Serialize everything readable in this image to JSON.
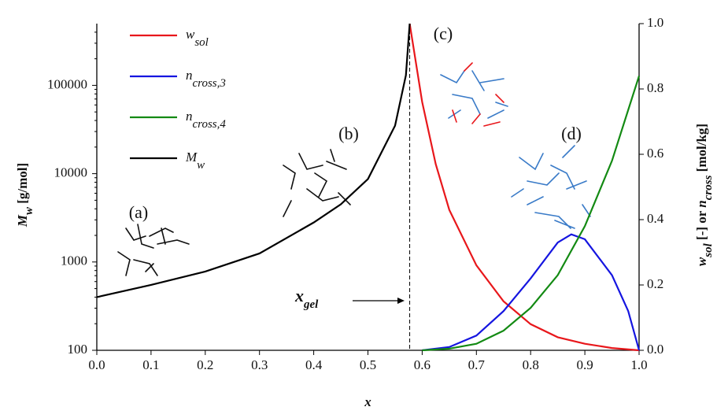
{
  "chart_data": {
    "type": "line",
    "xlabel": "x",
    "ylabel": {
      "main": "M",
      "sub": "w",
      "rest": " [g/mol]"
    },
    "y2label": {
      "a": "w",
      "a_sub": "sol",
      "b": " [-]  or  ",
      "c": "n",
      "c_sub": "cross",
      "d": " [mol/kg]"
    },
    "xlim": [
      0,
      1
    ],
    "xticks": [
      {
        "value": 0,
        "label": "0.0"
      },
      {
        "value": 0.1,
        "label": "0.1"
      },
      {
        "value": 0.2,
        "label": "0.2"
      },
      {
        "value": 0.3,
        "label": "0.3"
      },
      {
        "value": 0.4,
        "label": "0.4"
      },
      {
        "value": 0.5,
        "label": "0.5"
      },
      {
        "value": 0.6,
        "label": "0.6"
      },
      {
        "value": 0.7,
        "label": "0.7"
      },
      {
        "value": 0.8,
        "label": "0.8"
      },
      {
        "value": 0.9,
        "label": "0.9"
      },
      {
        "value": 1,
        "label": "1.0"
      }
    ],
    "ylim": [
      100,
      500000
    ],
    "ylog": true,
    "yticks": [
      100,
      1000,
      10000,
      100000
    ],
    "y2lim": [
      0,
      1
    ],
    "y2ticks": [
      {
        "value": 0,
        "label": "0.0"
      },
      {
        "value": 0.2,
        "label": "0.2"
      },
      {
        "value": 0.4,
        "label": "0.4"
      },
      {
        "value": 0.6,
        "label": "0.6"
      },
      {
        "value": 0.8,
        "label": "0.8"
      },
      {
        "value": 1,
        "label": "1.0"
      }
    ],
    "series": [
      {
        "name": "w",
        "sub": "sol",
        "color": "#e8171b",
        "axis": "y2",
        "x": [
          0.577,
          0.6,
          0.625,
          0.65,
          0.7,
          0.75,
          0.8,
          0.85,
          0.9,
          0.95,
          1.0
        ],
        "values": [
          1.0,
          0.76,
          0.57,
          0.43,
          0.26,
          0.15,
          0.08,
          0.04,
          0.02,
          0.007,
          0
        ]
      },
      {
        "name": "n",
        "sub": "cross,3",
        "color": "#1515e0",
        "axis": "y2",
        "x": [
          0.6,
          0.65,
          0.7,
          0.75,
          0.8,
          0.85,
          0.875,
          0.9,
          0.95,
          0.98,
          1.0
        ],
        "values": [
          0,
          0.01,
          0.045,
          0.12,
          0.22,
          0.33,
          0.355,
          0.34,
          0.23,
          0.12,
          0
        ]
      },
      {
        "name": "n",
        "sub": "cross,4",
        "color": "#138a13",
        "axis": "y2",
        "x": [
          0.6,
          0.65,
          0.7,
          0.75,
          0.8,
          0.85,
          0.9,
          0.95,
          1.0
        ],
        "values": [
          0,
          0.005,
          0.02,
          0.06,
          0.13,
          0.23,
          0.38,
          0.58,
          0.84
        ]
      },
      {
        "name": "M",
        "sub": "w",
        "color": "#000000",
        "axis": "y",
        "x": [
          0,
          0.1,
          0.2,
          0.3,
          0.4,
          0.45,
          0.5,
          0.55,
          0.57,
          0.577
        ],
        "values": [
          400,
          550,
          780,
          1250,
          2800,
          4500,
          8700,
          35000,
          130000,
          500000
        ]
      }
    ],
    "annotations": [
      "(a)",
      "(b)",
      "(c)",
      "(d)"
    ],
    "gel": {
      "text": "x",
      "sub": "gel",
      "value": 0.577
    }
  }
}
